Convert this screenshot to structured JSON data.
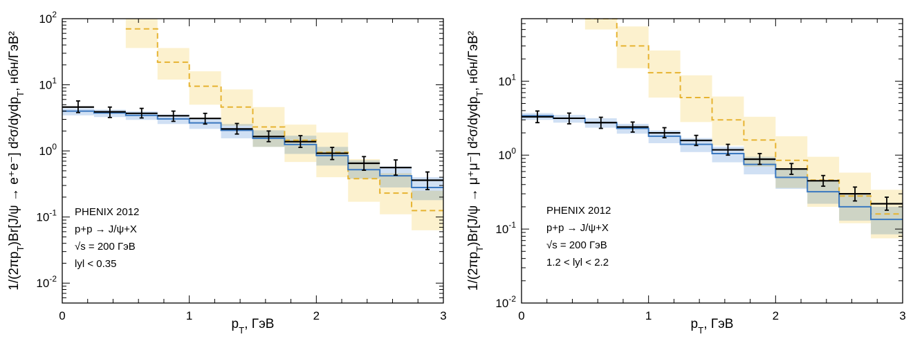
{
  "chart_data": [
    {
      "type": "line",
      "panel": "left",
      "xlabel": "p_T, ГэВ",
      "ylabel": "1/(2πp_T)Br[J/ψ → e⁺e⁻] d²σ/dydp_T, нбн/ГэВ²",
      "xlim": [
        0,
        3
      ],
      "ylim": [
        0.005,
        100
      ],
      "yscale": "log",
      "x_ticks": [
        "0",
        "1",
        "2",
        "3"
      ],
      "y_ticks": [
        {
          "value": 100,
          "label": "10",
          "exp": "2"
        },
        {
          "value": 10,
          "label": "10",
          "exp": "1"
        },
        {
          "value": 1,
          "label": "10",
          "exp": "0"
        },
        {
          "value": 0.1,
          "label": "10",
          "exp": "-1"
        },
        {
          "value": 0.01,
          "label": "10",
          "exp": "-2"
        }
      ],
      "annotations": [
        "PHENIX 2012",
        "p+p → J/ψ+X",
        "√s = 200 ГэВ",
        "lyl < 0.35"
      ],
      "colors": {
        "data": "#000000",
        "blue": "#3a78c0",
        "blue_band": "#c4d8f1",
        "yellow": "#e6b330",
        "yellow_band": "#fbeec6"
      },
      "bin_edges": [
        0,
        0.25,
        0.5,
        0.75,
        1.0,
        1.25,
        1.5,
        1.75,
        2.0,
        2.25,
        2.5,
        2.75,
        3.0
      ],
      "data_points": {
        "x": [
          0.125,
          0.375,
          0.625,
          0.875,
          1.125,
          1.375,
          1.625,
          1.875,
          2.125,
          2.375,
          2.625,
          2.875
        ],
        "y": [
          4.6,
          3.9,
          3.7,
          3.4,
          3.1,
          2.15,
          1.65,
          1.38,
          0.92,
          0.65,
          0.56,
          0.36
        ],
        "err_low": [
          3.8,
          3.2,
          3.15,
          2.8,
          2.55,
          1.8,
          1.38,
          1.13,
          0.74,
          0.51,
          0.43,
          0.26
        ],
        "err_high": [
          5.7,
          4.6,
          4.4,
          4.0,
          3.7,
          2.6,
          2.0,
          1.7,
          1.13,
          0.82,
          0.73,
          0.48
        ]
      },
      "blue_model": {
        "values": [
          4.0,
          3.75,
          3.45,
          3.05,
          2.65,
          2.05,
          1.55,
          1.25,
          0.85,
          0.52,
          0.42,
          0.28
        ],
        "band_low": [
          3.45,
          3.25,
          2.95,
          2.55,
          2.15,
          1.55,
          1.15,
          0.9,
          0.6,
          0.38,
          0.28,
          0.18
        ],
        "band_high": [
          4.4,
          4.2,
          3.95,
          3.55,
          3.15,
          2.55,
          2.05,
          1.7,
          1.15,
          0.72,
          0.58,
          0.4
        ]
      },
      "yellow_model": {
        "values": [
          null,
          null,
          70,
          22,
          9.5,
          4.6,
          2.3,
          1.45,
          0.95,
          0.38,
          0.23,
          0.125
        ],
        "band_low": [
          null,
          null,
          36,
          12,
          5.0,
          2.4,
          1.15,
          0.68,
          0.4,
          0.17,
          0.11,
          0.063
        ],
        "band_high": [
          null,
          null,
          100,
          36,
          16,
          8.5,
          4.6,
          2.5,
          1.9,
          0.75,
          0.46,
          0.25
        ]
      }
    },
    {
      "type": "line",
      "panel": "right",
      "xlabel": "p_T, ГэВ",
      "ylabel": "1/(2πp_T)Br[J/ψ → μ⁺μ⁻] d²σ/dydp_T, нбн/ГэВ²",
      "xlim": [
        0,
        3
      ],
      "ylim": [
        0.01,
        70
      ],
      "yscale": "log",
      "x_ticks": [
        "0",
        "1",
        "2",
        "3"
      ],
      "y_ticks": [
        {
          "value": 10,
          "label": "10",
          "exp": "1"
        },
        {
          "value": 1,
          "label": "10",
          "exp": "0"
        },
        {
          "value": 0.1,
          "label": "10",
          "exp": "-1"
        },
        {
          "value": 0.01,
          "label": "10",
          "exp": "-2"
        }
      ],
      "annotations": [
        "PHENIX 2012",
        "p+p → J/ψ+X",
        "√s = 200 ГэВ",
        "1.2 < lyl < 2.2"
      ],
      "colors": {
        "data": "#000000",
        "blue": "#3a78c0",
        "blue_band": "#c4d8f1",
        "yellow": "#e6b330",
        "yellow_band": "#fbeec6"
      },
      "bin_edges": [
        0,
        0.25,
        0.5,
        0.75,
        1.0,
        1.25,
        1.5,
        1.75,
        2.0,
        2.25,
        2.5,
        2.75,
        3.0
      ],
      "data_points": {
        "x": [
          0.125,
          0.375,
          0.625,
          0.875,
          1.125,
          1.375,
          1.625,
          1.875,
          2.125,
          2.375,
          2.625,
          2.875
        ],
        "y": [
          3.3,
          3.15,
          2.75,
          2.4,
          2.0,
          1.58,
          1.18,
          0.88,
          0.65,
          0.45,
          0.3,
          0.22
        ],
        "err_low": [
          2.75,
          2.65,
          2.3,
          2.05,
          1.72,
          1.35,
          1.0,
          0.75,
          0.55,
          0.38,
          0.24,
          0.18
        ],
        "err_high": [
          3.95,
          3.7,
          3.25,
          2.8,
          2.35,
          1.85,
          1.4,
          1.05,
          0.77,
          0.53,
          0.37,
          0.27
        ]
      },
      "blue_model": {
        "values": [
          3.4,
          3.15,
          2.75,
          2.3,
          1.8,
          1.4,
          1.05,
          0.75,
          0.5,
          0.32,
          0.2,
          0.135
        ],
        "band_low": [
          3.0,
          2.75,
          2.35,
          1.95,
          1.45,
          1.1,
          0.8,
          0.55,
          0.35,
          0.22,
          0.13,
          0.085
        ],
        "band_high": [
          3.7,
          3.5,
          3.15,
          2.65,
          2.15,
          1.7,
          1.3,
          0.95,
          0.65,
          0.45,
          0.29,
          0.2
        ]
      },
      "yellow_model": {
        "values": [
          null,
          null,
          70,
          30,
          13,
          6.0,
          3.0,
          1.6,
          0.85,
          0.46,
          0.28,
          0.16
        ],
        "band_low": [
          null,
          null,
          50,
          15,
          6.0,
          2.8,
          1.35,
          0.7,
          0.36,
          0.2,
          0.12,
          0.075
        ],
        "band_high": [
          null,
          null,
          70,
          55,
          26,
          12,
          6.2,
          3.3,
          1.8,
          0.95,
          0.58,
          0.34
        ]
      }
    }
  ]
}
